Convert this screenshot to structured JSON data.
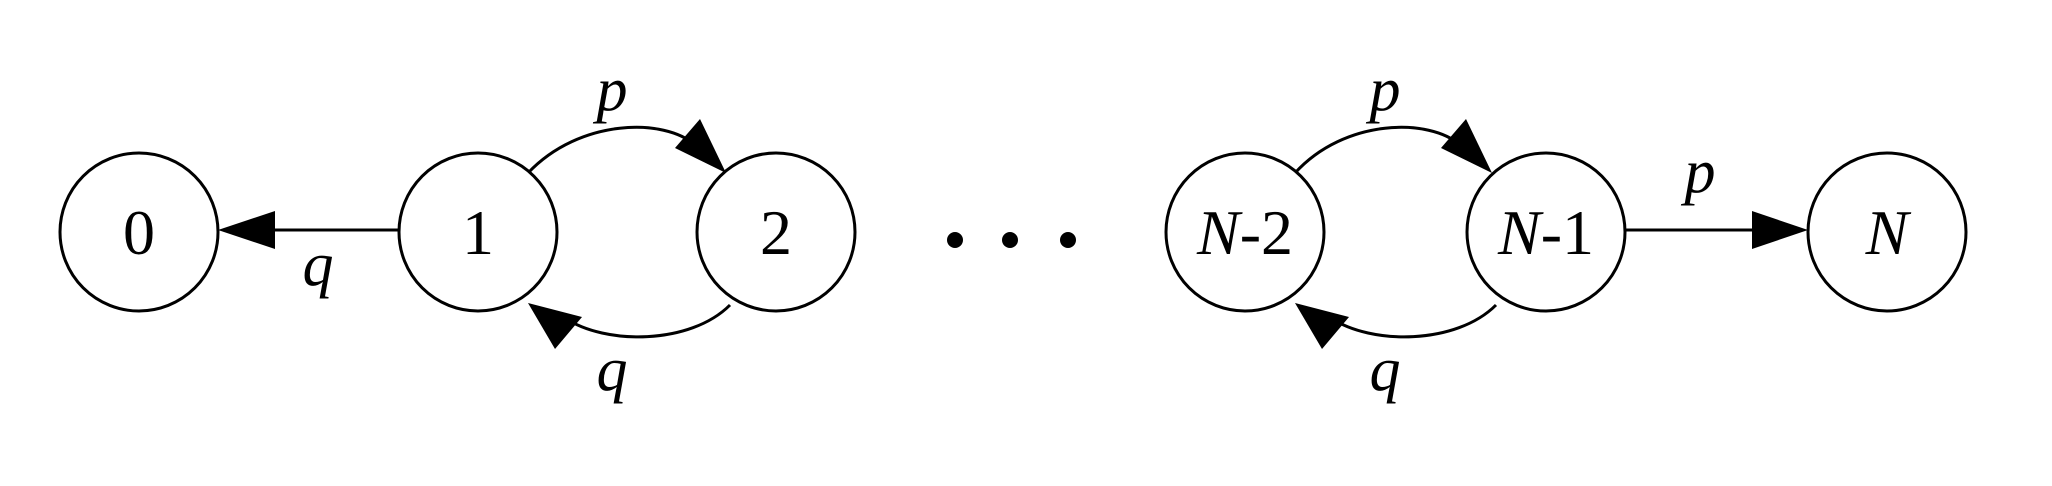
{
  "nodes": [
    {
      "id": "s0",
      "label_italic": "",
      "label": "0"
    },
    {
      "id": "s1",
      "label_italic": "",
      "label": "1"
    },
    {
      "id": "s2",
      "label_italic": "",
      "label": "2"
    },
    {
      "id": "sN2",
      "label_italic": "N",
      "label": "-2"
    },
    {
      "id": "sN1",
      "label_italic": "N",
      "label": "-1"
    },
    {
      "id": "sN",
      "label_italic": "N",
      "label": ""
    }
  ],
  "edges": [
    {
      "from": "s1",
      "to": "s0",
      "label": "q"
    },
    {
      "from": "s1",
      "to": "s2",
      "label": "p"
    },
    {
      "from": "s2",
      "to": "s1",
      "label": "q"
    },
    {
      "from": "sN2",
      "to": "sN1",
      "label": "p"
    },
    {
      "from": "sN1",
      "to": "sN2",
      "label": "q"
    },
    {
      "from": "sN1",
      "to": "sN",
      "label": "p"
    }
  ],
  "ellipsis": "..."
}
